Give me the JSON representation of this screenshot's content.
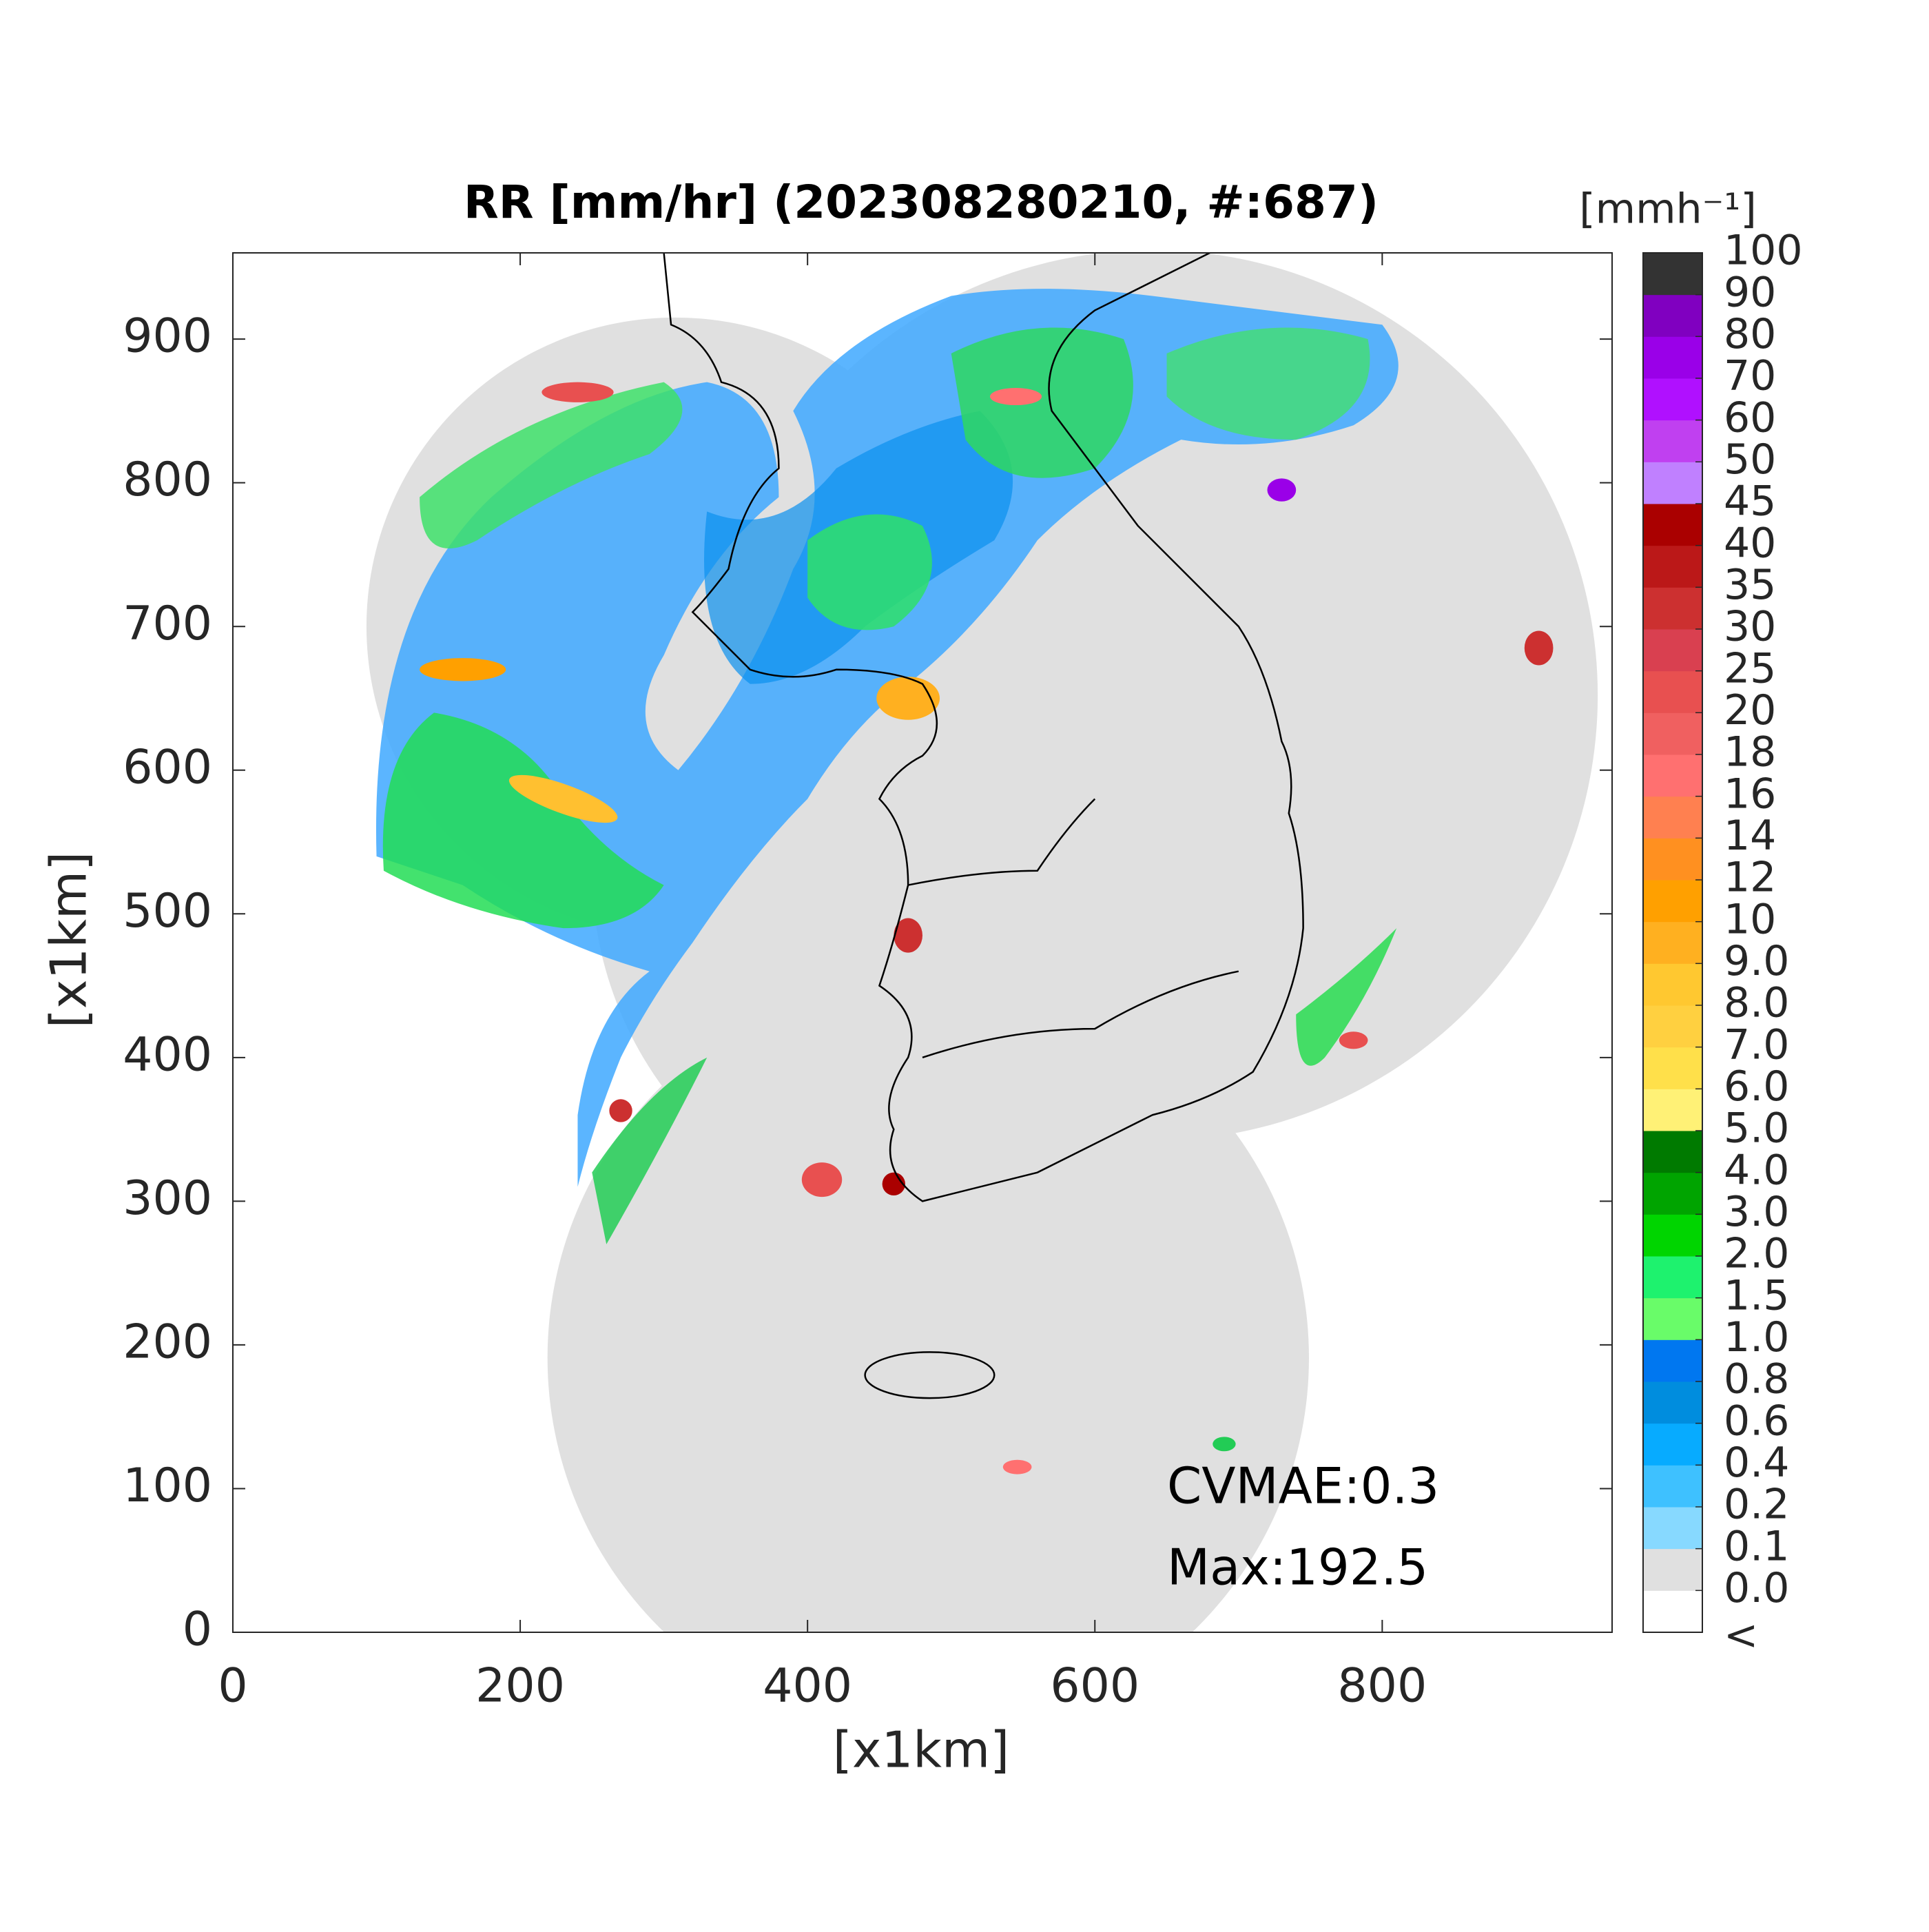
{
  "chart_data": {
    "type": "heatmap",
    "title": "RR [mm/hr] (202308280210, #:687)",
    "x_label": "[x1km]",
    "y_label": "[x1km]",
    "xlim": [
      0,
      960
    ],
    "ylim": [
      0,
      960
    ],
    "xticks": [
      0,
      200,
      400,
      600,
      800
    ],
    "yticks": [
      0,
      100,
      200,
      300,
      400,
      500,
      600,
      700,
      800,
      900
    ],
    "annotations": [
      "CVMAE:0.3",
      "Max:192.5"
    ],
    "colorbar": {
      "label": "[mmh⁻¹]",
      "under_label": "<",
      "under_color": "#ffffff",
      "boundaries": [
        {
          "value": 0,
          "label": "0.0"
        },
        0.1,
        0.2,
        0.4,
        0.6,
        0.8,
        {
          "value": 1,
          "label": "1.0"
        },
        1.5,
        {
          "value": 2,
          "label": "2.0"
        },
        {
          "value": 3,
          "label": "3.0"
        },
        {
          "value": 4,
          "label": "4.0"
        },
        {
          "value": 5,
          "label": "5.0"
        },
        {
          "value": 6,
          "label": "6.0"
        },
        {
          "value": 7,
          "label": "7.0"
        },
        {
          "value": 8,
          "label": "8.0"
        },
        {
          "value": 9,
          "label": "9.0"
        },
        10,
        12,
        14,
        16,
        18,
        20,
        25,
        30,
        35,
        40,
        45,
        50,
        60,
        70,
        80,
        90,
        100
      ],
      "colors": [
        "#e0e0e0",
        "#87d9ff",
        "#3ec1ff",
        "#07abff",
        "#008dde",
        "#0077f0",
        "#69fc69",
        "#1ef26e",
        "#00d500",
        "#00a400",
        "#007a00",
        "#fff176",
        "#ffe04a",
        "#ffd040",
        "#ffc830",
        "#ffb020",
        "#ffa000",
        "#ff9020",
        "#ff8050",
        "#ff7070",
        "#f06060",
        "#e85050",
        "#d94050",
        "#cc3030",
        "#bb1818",
        "#aa0000",
        "#c080ff",
        "#c040f0",
        "#b010ff",
        "#9a00e8",
        "#8000c0",
        "#333333"
      ]
    }
  }
}
